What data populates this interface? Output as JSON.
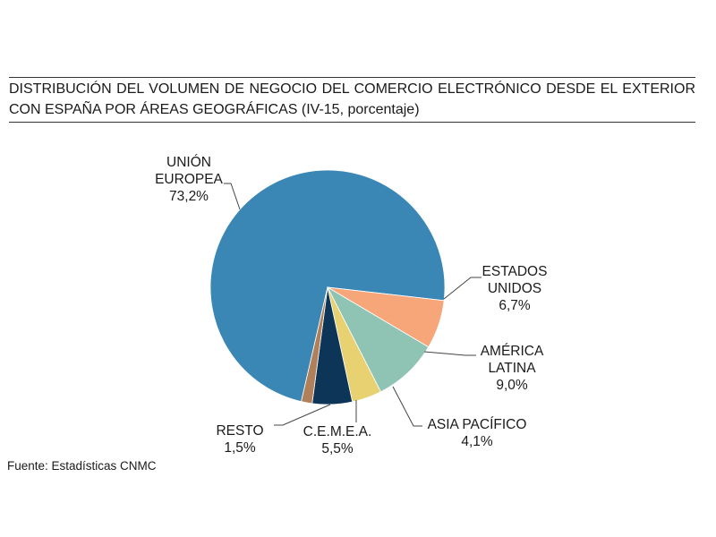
{
  "title": "DISTRIBUCIÓN DEL VOLUMEN DE NEGOCIO DEL COMERCIO ELECTRÓNICO DESDE EL EXTERIOR CON ESPAÑA POR ÁREAS GEOGRÁFICAS (IV-15, porcentaje)",
  "source": "Fuente: Estadísticas CNMC",
  "chart_data": {
    "type": "pie",
    "title": "DISTRIBUCIÓN DEL VOLUMEN DE NEGOCIO DEL COMERCIO ELECTRÓNICO DESDE EL EXTERIOR CON ESPAÑA POR ÁREAS GEOGRÁFICAS (IV-15, porcentaje)",
    "slices": [
      {
        "label_lines": [
          "UNIÓN",
          "EUROPEA"
        ],
        "value_label": "73,2%",
        "value": 73.2,
        "color": "#3a87b5"
      },
      {
        "label_lines": [
          "ESTADOS",
          "UNIDOS"
        ],
        "value_label": "6,7%",
        "value": 6.7,
        "color": "#f7a679"
      },
      {
        "label_lines": [
          "AMÉRICA",
          "LATINA"
        ],
        "value_label": "9,0%",
        "value": 9.0,
        "color": "#8fc3b4"
      },
      {
        "label_lines": [
          "ASIA PACÍFICO"
        ],
        "value_label": "4,1%",
        "value": 4.1,
        "color": "#e8d170"
      },
      {
        "label_lines": [
          "C.E.M.E.A."
        ],
        "value_label": "5,5%",
        "value": 5.5,
        "color": "#0d3558"
      },
      {
        "label_lines": [
          "RESTO"
        ],
        "value_label": "1,5%",
        "value": 1.5,
        "color": "#b0805a"
      }
    ],
    "legend": "none (labels with leader lines)"
  }
}
